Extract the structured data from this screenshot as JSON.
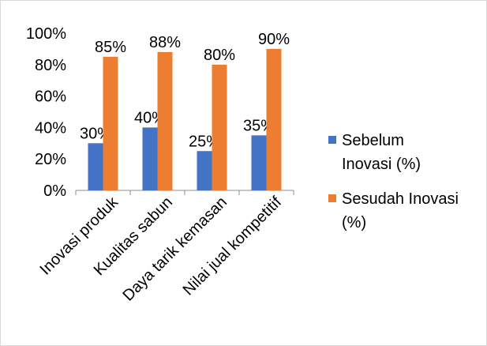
{
  "chart_data": {
    "type": "bar",
    "categories": [
      "Inovasi produk",
      "Kualitas sabun",
      "Daya tarik kemasan",
      "Nilai jual kompetitif"
    ],
    "series": [
      {
        "name": "Sebelum Inovasi (%)",
        "legend_lines": [
          "Sebelum",
          "Inovasi (%)"
        ],
        "values": [
          30,
          40,
          25,
          35
        ],
        "labels": [
          "30%",
          "40%",
          "25%",
          "35%"
        ],
        "color": "#4472C4"
      },
      {
        "name": "Sesudah Inovasi (%)",
        "legend_lines": [
          "Sesudah Inovasi",
          "(%)"
        ],
        "values": [
          85,
          88,
          80,
          90
        ],
        "labels": [
          "85%",
          "88%",
          "80%",
          "90%"
        ],
        "color": "#ED7D31"
      }
    ],
    "y_ticks": [
      "0%",
      "20%",
      "40%",
      "60%",
      "80%",
      "100%"
    ],
    "ylim": [
      0,
      100
    ],
    "grid": false,
    "legend_position": "right"
  }
}
